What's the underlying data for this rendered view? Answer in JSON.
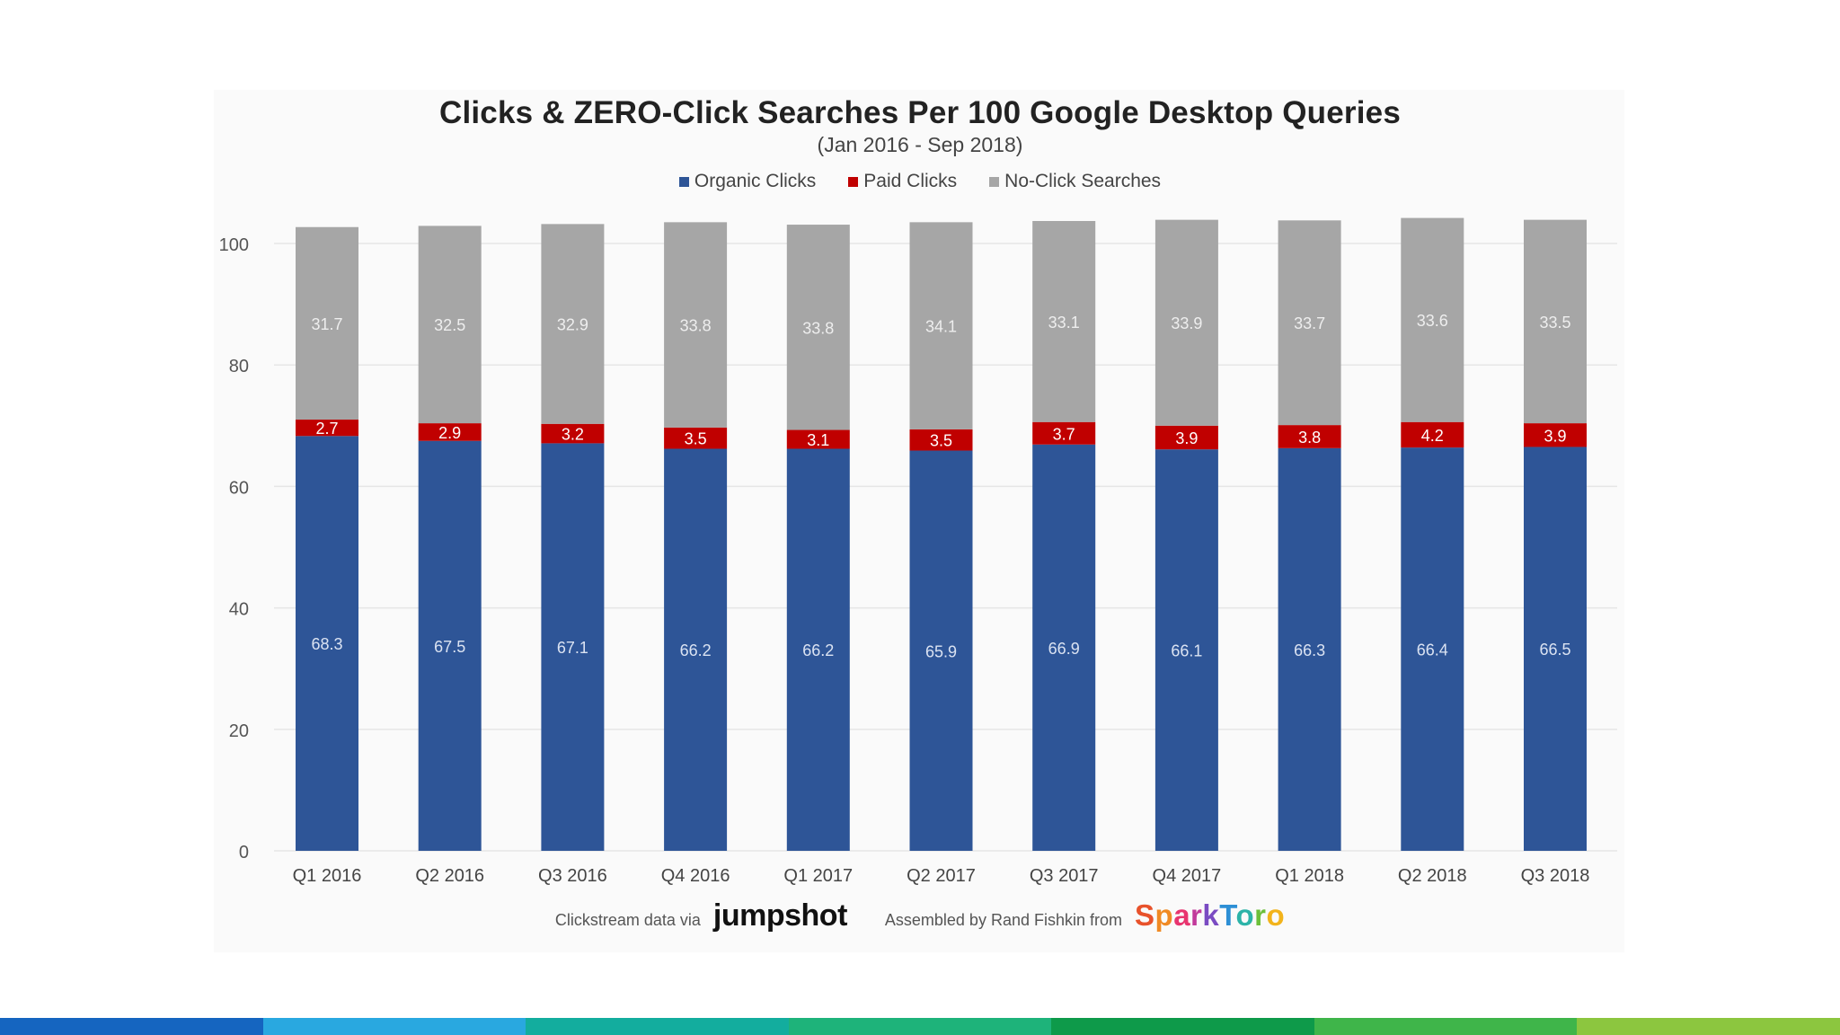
{
  "chart_data": {
    "type": "bar",
    "stacked": true,
    "title": "Clicks & ZERO-Click Searches Per 100 Google Desktop Queries",
    "subtitle": "(Jan 2016 - Sep 2018)",
    "categories": [
      "Q1 2016",
      "Q2 2016",
      "Q3 2016",
      "Q4 2016",
      "Q1 2017",
      "Q2 2017",
      "Q3 2017",
      "Q4 2017",
      "Q1 2018",
      "Q2 2018",
      "Q3 2018"
    ],
    "series": [
      {
        "name": "Organic Clicks",
        "color": "#2e5597",
        "values": [
          68.3,
          67.5,
          67.1,
          66.2,
          66.2,
          65.9,
          66.9,
          66.1,
          66.3,
          66.4,
          66.5
        ]
      },
      {
        "name": "Paid Clicks",
        "color": "#c00000",
        "values": [
          2.7,
          2.9,
          3.2,
          3.5,
          3.1,
          3.5,
          3.7,
          3.9,
          3.8,
          4.2,
          3.9
        ]
      },
      {
        "name": "No-Click Searches",
        "color": "#a6a6a6",
        "values": [
          31.7,
          32.5,
          32.9,
          33.8,
          33.8,
          34.1,
          33.1,
          33.9,
          33.7,
          33.6,
          33.5
        ]
      }
    ],
    "ylim": [
      0,
      105
    ],
    "yticks": [
      0,
      20,
      40,
      60,
      80,
      100
    ],
    "grid": true,
    "legend_position": "top"
  },
  "footer": {
    "clickstream_text": "Clickstream data via",
    "jumpshot": "jumpshot",
    "assembled_text": "Assembled by Rand Fishkin from",
    "sparktoro": "SparkToro"
  },
  "colors": {
    "strip": [
      "#1565c0",
      "#29a8e0",
      "#13ad9e",
      "#1eb37a",
      "#0e9a4a",
      "#3fb54a",
      "#8cc63f"
    ]
  }
}
